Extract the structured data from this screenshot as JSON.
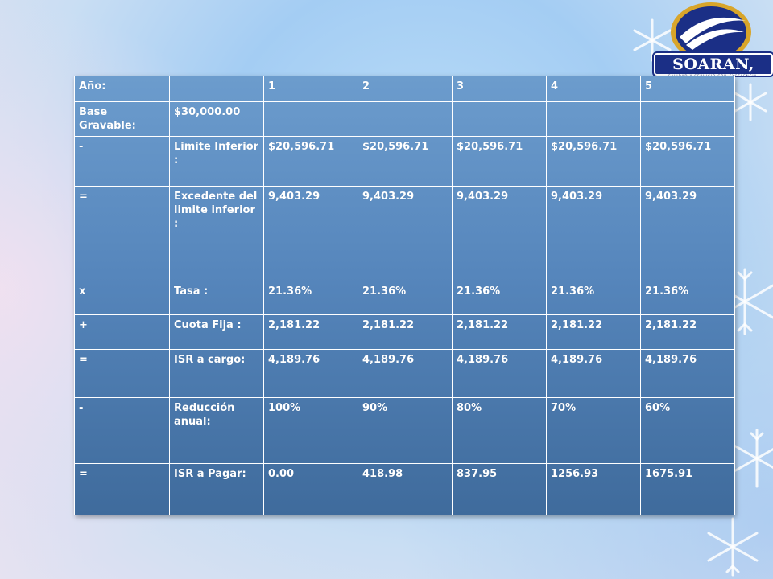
{
  "brand": {
    "logo_text": "SOARAN, S.C.",
    "tagline": "CALIDAD Y SERVICIO CON EXCELENCIA",
    "colors": {
      "navy": "#1b2f86",
      "table": "#5686bc"
    }
  },
  "table": {
    "header": {
      "label": "Año:",
      "blank": "",
      "years": [
        "1",
        "2",
        "3",
        "4",
        "5"
      ]
    },
    "rows": [
      {
        "op": "Base Gravable:",
        "concept": "$30,000.00",
        "values": [
          "",
          "",
          "",
          "",
          ""
        ]
      },
      {
        "op": "-",
        "concept": "Limite Inferior :",
        "values": [
          "$20,596.71",
          "$20,596.71",
          "$20,596.71",
          "$20,596.71",
          "$20,596.71"
        ]
      },
      {
        "op": "=",
        "concept": "Excedente del limite inferior :",
        "values": [
          "9,403.29",
          "9,403.29",
          "9,403.29",
          "9,403.29",
          "9,403.29"
        ]
      },
      {
        "op": "x",
        "concept": "Tasa :",
        "values": [
          "21.36%",
          "21.36%",
          "21.36%",
          "21.36%",
          "21.36%"
        ]
      },
      {
        "op": "+",
        "concept": "Cuota Fija :",
        "values": [
          "2,181.22",
          "2,181.22",
          "2,181.22",
          "2,181.22",
          "2,181.22"
        ]
      },
      {
        "op": "=",
        "concept": "ISR a cargo:",
        "values": [
          "4,189.76",
          "4,189.76",
          "4,189.76",
          "4,189.76",
          "4,189.76"
        ]
      },
      {
        "op": "-",
        "concept": "Reducción anual:",
        "values": [
          "100%",
          "90%",
          "80%",
          "70%",
          "60%"
        ]
      },
      {
        "op": "=",
        "concept": "ISR a Pagar:",
        "values": [
          "0.00",
          "418.98",
          "837.95",
          "1256.93",
          "1675.91"
        ]
      }
    ]
  }
}
